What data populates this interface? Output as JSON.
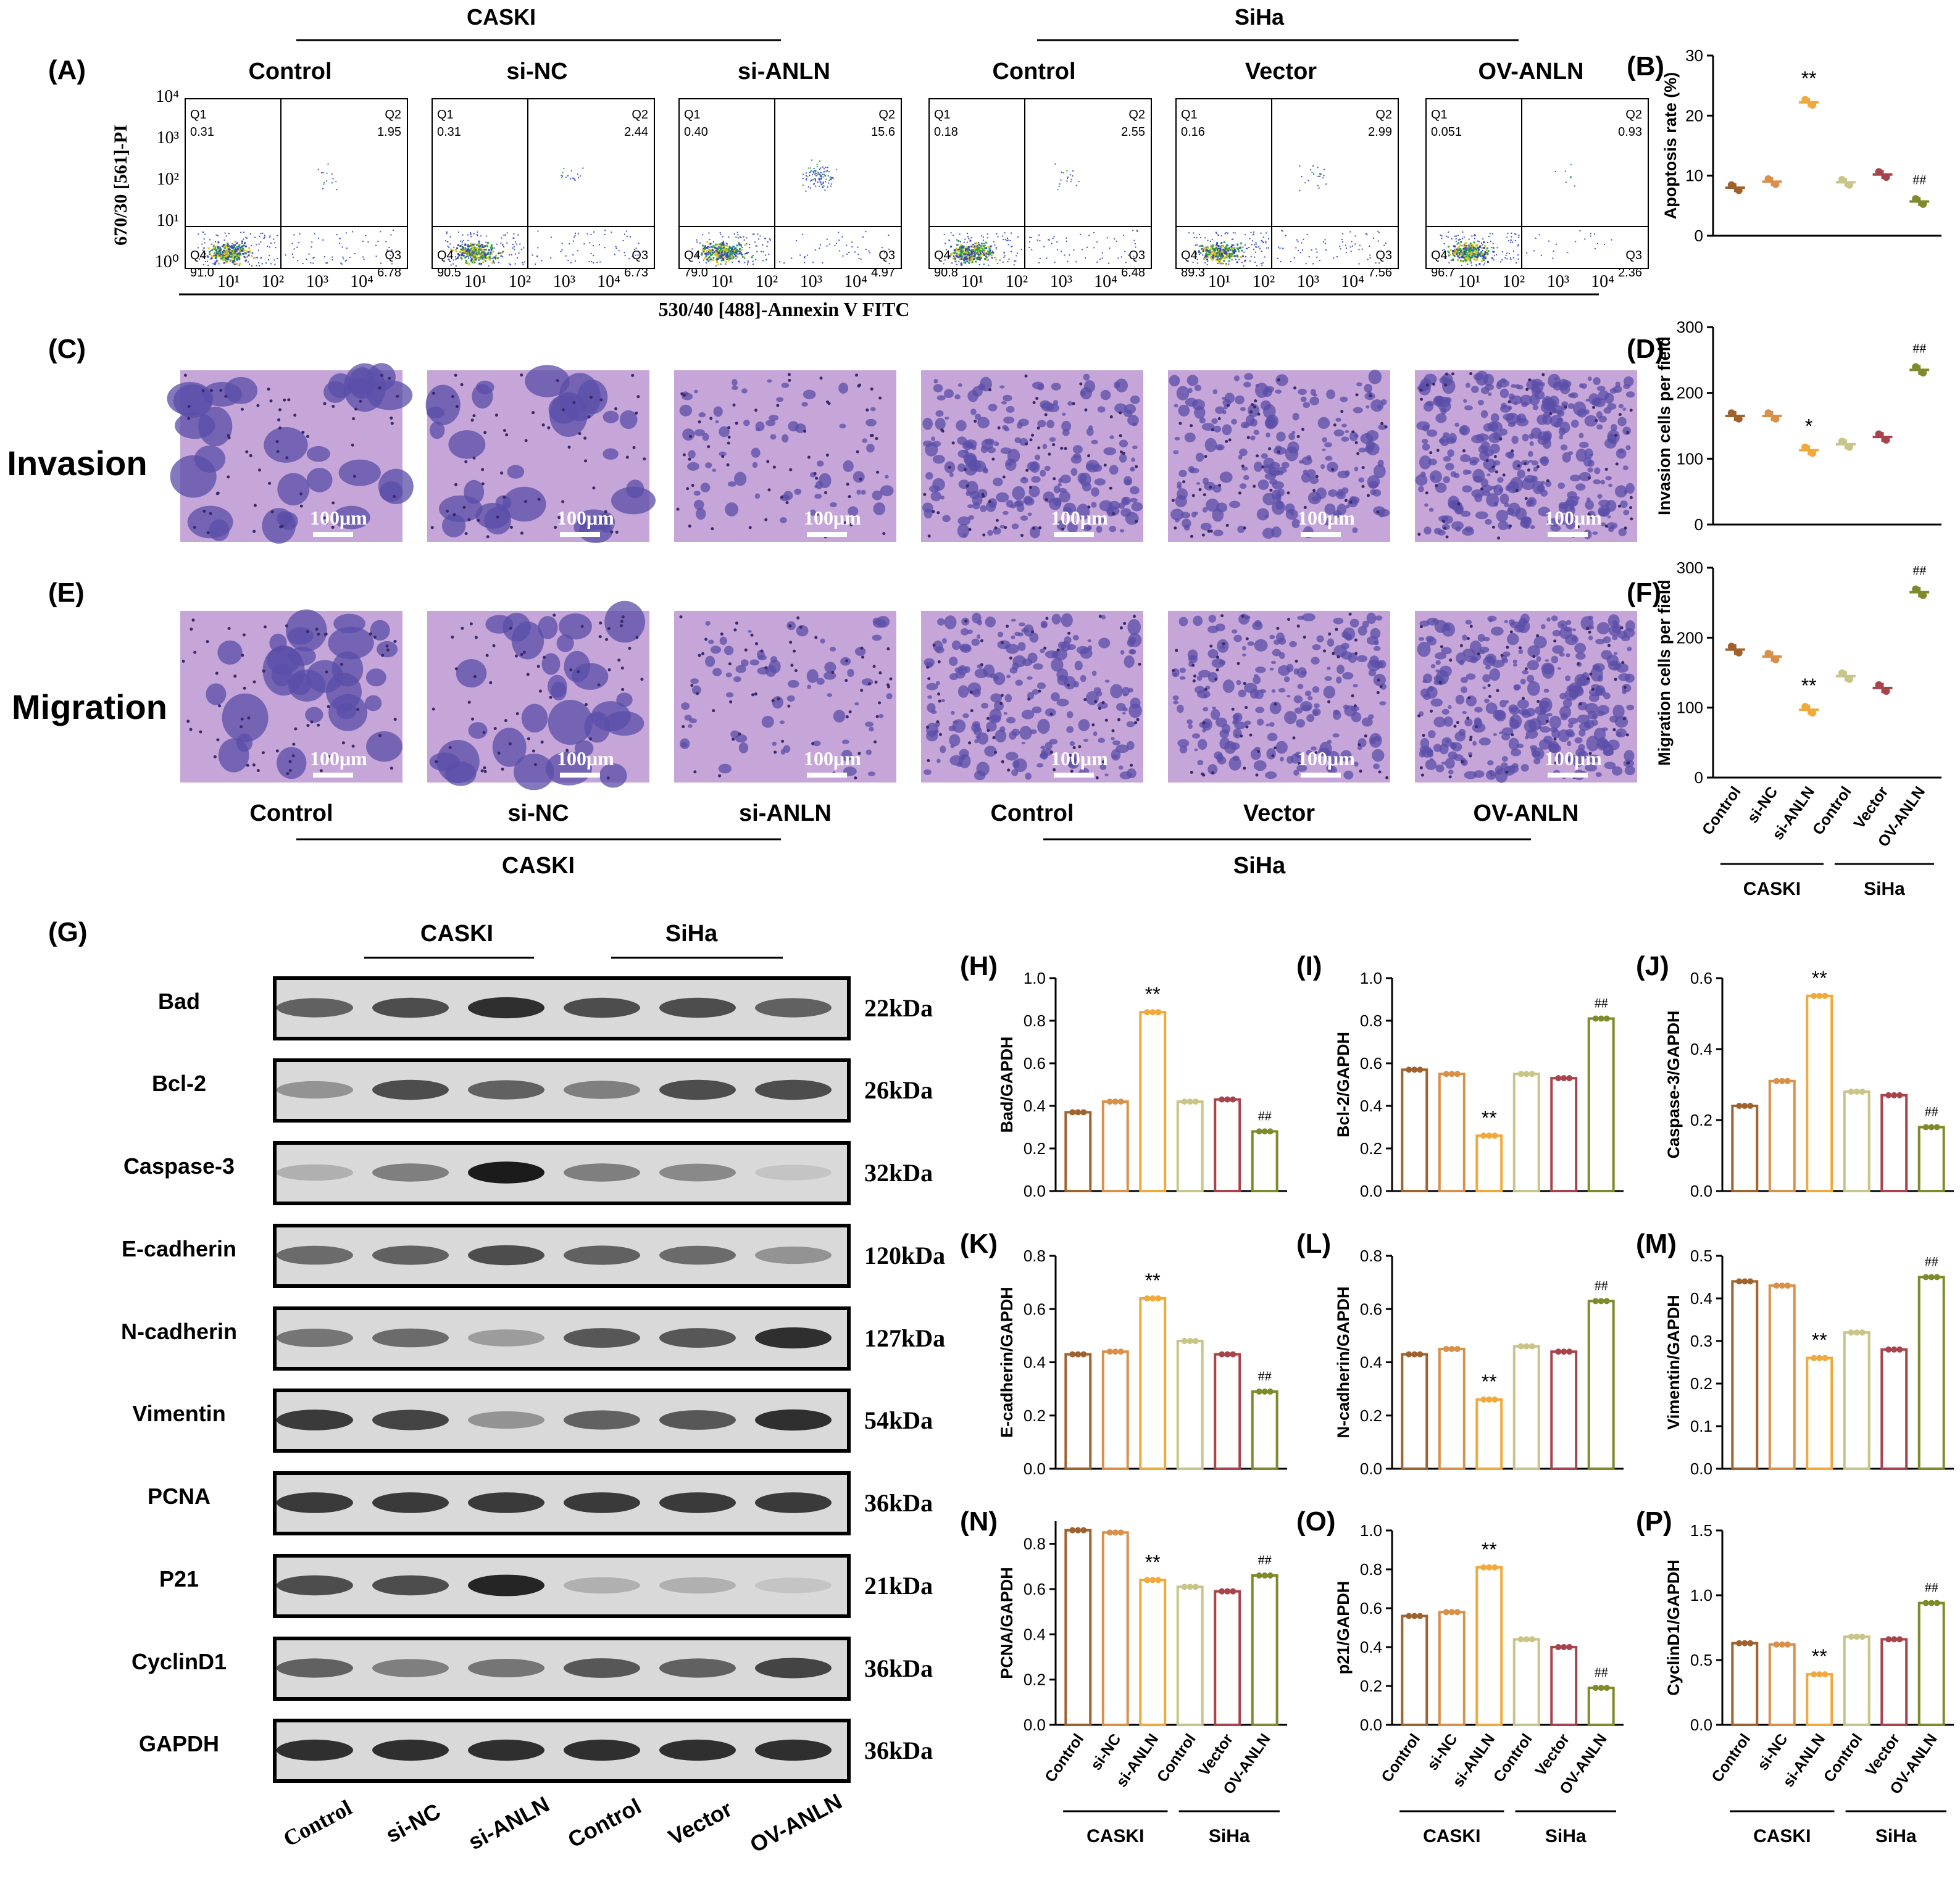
{
  "panels": {
    "A": "(A)",
    "B": "(B)",
    "C": "(C)",
    "D": "(D)",
    "E": "(E)",
    "F": "(F)",
    "G": "(G)",
    "H": "(H)",
    "I": "(I)",
    "J": "(J)",
    "K": "(K)",
    "L": "(L)",
    "M": "(M)",
    "N": "(N)",
    "O": "(O)",
    "P": "(P)"
  },
  "cell_lines": {
    "caski": "CASKI",
    "siha": "SiHa"
  },
  "groups_caski": [
    "Control",
    "si-NC",
    "si-ANLN"
  ],
  "groups_siha": [
    "Control",
    "Vector",
    "OV-ANLN"
  ],
  "flow": {
    "yaxis_label": "670/30 [561]-PI",
    "xaxis_label": "530/40 [488]-Annexin V FITC",
    "y_ticks": [
      "10⁴",
      "10³",
      "10²",
      "10¹",
      "10⁰"
    ],
    "x_ticks": [
      "10¹",
      "10²",
      "10³",
      "10⁴"
    ],
    "quadrant_names": [
      "Q1",
      "Q2",
      "Q3",
      "Q4"
    ],
    "plots": [
      {
        "title": "Control",
        "Q1": "0.31",
        "Q2": "1.95",
        "Q3": "6.78",
        "Q4": "91.0"
      },
      {
        "title": "si-NC",
        "Q1": "0.31",
        "Q2": "2.44",
        "Q3": "6.73",
        "Q4": "90.5"
      },
      {
        "title": "si-ANLN",
        "Q1": "0.40",
        "Q2": "15.6",
        "Q3": "4.97",
        "Q4": "79.0"
      },
      {
        "title": "Control",
        "Q1": "0.18",
        "Q2": "2.55",
        "Q3": "6.48",
        "Q4": "90.8"
      },
      {
        "title": "Vector",
        "Q1": "0.16",
        "Q2": "2.99",
        "Q3": "7.56",
        "Q4": "89.3"
      },
      {
        "title": "OV-ANLN",
        "Q1": "0.051",
        "Q2": "0.93",
        "Q3": "2.36",
        "Q4": "96.7"
      }
    ]
  },
  "micro": {
    "invasion_label": "Invasion",
    "migration_label": "Migration",
    "scale_label": "100μm"
  },
  "western": {
    "proteins": [
      "Bad",
      "Bcl-2",
      "Caspase-3",
      "E-cadherin",
      "N-cadherin",
      "Vimentin",
      "PCNA",
      "P21",
      "CyclinD1",
      "GAPDH"
    ],
    "sizes": [
      "22kDa",
      "26kDa",
      "32kDa",
      "120kDa",
      "127kDa",
      "54kDa",
      "36kDa",
      "21kDa",
      "36kDa",
      "36kDa"
    ],
    "lanes": [
      "Control",
      "si-NC",
      "si-ANLN",
      "Control",
      "Vector",
      "OV-ANLN"
    ]
  },
  "chart_data": [
    {
      "panel": "B",
      "type": "scatter",
      "ylabel": "Apoptosis rate (%)",
      "ylim": [
        0,
        30
      ],
      "yticks": [
        0,
        10,
        20,
        30
      ],
      "categories": [
        "Control",
        "si-NC",
        "si-ANLN",
        "Control",
        "Vector",
        "OV-ANLN"
      ],
      "values": [
        8.0,
        9.0,
        22.2,
        8.9,
        10.2,
        5.7
      ],
      "sig": [
        "",
        "",
        "**",
        "",
        "",
        "##"
      ]
    },
    {
      "panel": "D",
      "type": "scatter",
      "ylabel": "Invasion cells per field",
      "ylim": [
        0,
        300
      ],
      "yticks": [
        0,
        100,
        200,
        300
      ],
      "categories": [
        "Control",
        "si-NC",
        "si-ANLN",
        "Control",
        "Vector",
        "OV-ANLN"
      ],
      "values": [
        165,
        165,
        113,
        122,
        133,
        235
      ],
      "sig": [
        "",
        "",
        "*",
        "",
        "",
        "##"
      ]
    },
    {
      "panel": "F",
      "type": "scatter",
      "ylabel": "Migration cells per field",
      "ylim": [
        0,
        300
      ],
      "yticks": [
        0,
        100,
        200,
        300
      ],
      "categories": [
        "Control",
        "si-NC",
        "si-ANLN",
        "Control",
        "Vector",
        "OV-ANLN"
      ],
      "values": [
        183,
        173,
        97,
        145,
        128,
        265
      ],
      "sig": [
        "",
        "",
        "**",
        "",
        "",
        "##"
      ]
    },
    {
      "panel": "H",
      "type": "bar",
      "ylabel": "Bad/GAPDH",
      "ylim": [
        0,
        1.0
      ],
      "yticks": [
        "0.0",
        "0.2",
        "0.4",
        "0.6",
        "0.8",
        "1.0"
      ],
      "categories": [
        "Control",
        "si-NC",
        "si-ANLN",
        "Control",
        "Vector",
        "OV-ANLN"
      ],
      "values": [
        0.37,
        0.42,
        0.84,
        0.42,
        0.43,
        0.28
      ],
      "sig": [
        "",
        "",
        "**",
        "",
        "",
        "##"
      ]
    },
    {
      "panel": "I",
      "type": "bar",
      "ylabel": "Bcl-2/GAPDH",
      "ylim": [
        0,
        1.0
      ],
      "yticks": [
        "0.0",
        "0.2",
        "0.4",
        "0.6",
        "0.8",
        "1.0"
      ],
      "categories": [
        "Control",
        "si-NC",
        "si-ANLN",
        "Control",
        "Vector",
        "OV-ANLN"
      ],
      "values": [
        0.57,
        0.55,
        0.26,
        0.55,
        0.53,
        0.81
      ],
      "sig": [
        "",
        "",
        "**",
        "",
        "",
        "##"
      ]
    },
    {
      "panel": "J",
      "type": "bar",
      "ylabel": "Caspase-3/GAPDH",
      "ylim": [
        0,
        0.6
      ],
      "yticks": [
        "0.0",
        "0.2",
        "0.4",
        "0.6"
      ],
      "categories": [
        "Control",
        "si-NC",
        "si-ANLN",
        "Control",
        "Vector",
        "OV-ANLN"
      ],
      "values": [
        0.24,
        0.31,
        0.55,
        0.28,
        0.27,
        0.18
      ],
      "sig": [
        "",
        "",
        "**",
        "",
        "",
        "##"
      ]
    },
    {
      "panel": "K",
      "type": "bar",
      "ylabel": "E-cadherin/GAPDH",
      "ylim": [
        0,
        0.8
      ],
      "yticks": [
        "0.0",
        "0.2",
        "0.4",
        "0.6",
        "0.8"
      ],
      "categories": [
        "Control",
        "si-NC",
        "si-ANLN",
        "Control",
        "Vector",
        "OV-ANLN"
      ],
      "values": [
        0.43,
        0.44,
        0.64,
        0.48,
        0.43,
        0.29
      ],
      "sig": [
        "",
        "",
        "**",
        "",
        "",
        "##"
      ]
    },
    {
      "panel": "L",
      "type": "bar",
      "ylabel": "N-cadherin/GAPDH",
      "ylim": [
        0,
        0.8
      ],
      "yticks": [
        "0.0",
        "0.2",
        "0.4",
        "0.6",
        "0.8"
      ],
      "categories": [
        "Control",
        "si-NC",
        "si-ANLN",
        "Control",
        "Vector",
        "OV-ANLN"
      ],
      "values": [
        0.43,
        0.45,
        0.26,
        0.46,
        0.44,
        0.63
      ],
      "sig": [
        "",
        "",
        "**",
        "",
        "",
        "##"
      ]
    },
    {
      "panel": "M",
      "type": "bar",
      "ylabel": "Vimentin/GAPDH",
      "ylim": [
        0,
        0.5
      ],
      "yticks": [
        "0.0",
        "0.1",
        "0.2",
        "0.3",
        "0.4",
        "0.5"
      ],
      "categories": [
        "Control",
        "si-NC",
        "si-ANLN",
        "Control",
        "Vector",
        "OV-ANLN"
      ],
      "values": [
        0.44,
        0.43,
        0.26,
        0.32,
        0.28,
        0.45
      ],
      "sig": [
        "",
        "",
        "**",
        "",
        "",
        "##"
      ]
    },
    {
      "panel": "N",
      "type": "bar",
      "ylabel": "PCNA/GAPDH",
      "ylim": [
        0,
        0.9
      ],
      "yticks": [
        "0.0",
        "0.2",
        "0.4",
        "0.6",
        "0.8"
      ],
      "categories": [
        "Control",
        "si-NC",
        "si-ANLN",
        "Control",
        "Vector",
        "OV-ANLN"
      ],
      "values": [
        0.86,
        0.85,
        0.64,
        0.61,
        0.59,
        0.66
      ],
      "sig": [
        "",
        "",
        "**",
        "",
        "",
        "##"
      ]
    },
    {
      "panel": "O",
      "type": "bar",
      "ylabel": "p21/GAPDH",
      "ylim": [
        0,
        1.0
      ],
      "yticks": [
        "0.0",
        "0.2",
        "0.4",
        "0.6",
        "0.8",
        "1.0"
      ],
      "categories": [
        "Control",
        "si-NC",
        "si-ANLN",
        "Control",
        "Vector",
        "OV-ANLN"
      ],
      "values": [
        0.56,
        0.58,
        0.81,
        0.44,
        0.4,
        0.19
      ],
      "sig": [
        "",
        "",
        "**",
        "",
        "",
        "##"
      ]
    },
    {
      "panel": "P",
      "type": "bar",
      "ylabel": "CyclinD1/GAPDH",
      "ylim": [
        0,
        1.5
      ],
      "yticks": [
        "0.0",
        "0.5",
        "1.0",
        "1.5"
      ],
      "categories": [
        "Control",
        "si-NC",
        "si-ANLN",
        "Control",
        "Vector",
        "OV-ANLN"
      ],
      "values": [
        0.63,
        0.62,
        0.39,
        0.68,
        0.66,
        0.94
      ],
      "sig": [
        "",
        "",
        "**",
        "",
        "",
        "##"
      ]
    }
  ],
  "colors": [
    "#a0622d",
    "#d9904a",
    "#f0a93a",
    "#c9c487",
    "#a8434b",
    "#7f8a2a"
  ]
}
